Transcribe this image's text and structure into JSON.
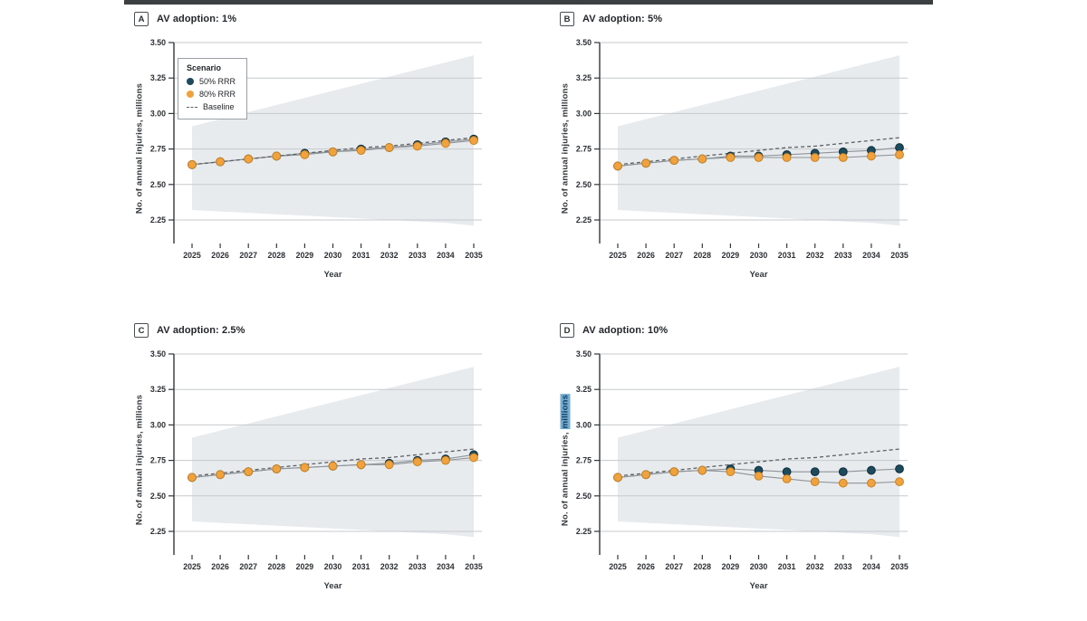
{
  "accent_colors": {
    "rrr50": "#1d4a5c",
    "rrr50_stroke": "#0f2f3c",
    "rrr80": "#f0a23f",
    "rrr80_stroke": "#c9821f",
    "baseline": "#5c6266",
    "band_fill": "#e8ebee",
    "gridline": "#c6cacd",
    "highlight": "#74add2"
  },
  "legend": {
    "title": "Scenario",
    "items": [
      {
        "label": "50% RRR",
        "marker": "navy-dot"
      },
      {
        "label": "80% RRR",
        "marker": "orange-dot"
      },
      {
        "label": "Baseline",
        "marker": "dashed-line"
      }
    ]
  },
  "chart_data": [
    {
      "type": "line",
      "panel_label": "A",
      "title": "AV adoption: 1%",
      "xlabel": "Year",
      "ylabel": "No. of annual injuries, millions",
      "x": [
        2025,
        2026,
        2027,
        2028,
        2029,
        2030,
        2031,
        2032,
        2033,
        2034,
        2035
      ],
      "yticks": [
        3.5,
        3.25,
        3.0,
        2.75,
        2.5,
        2.25
      ],
      "ylim": [
        2.1,
        3.5
      ],
      "series": [
        {
          "name": "50% RRR",
          "color": "#1d4a5c",
          "stroke": "#0f2f3c",
          "values": [
            2.64,
            2.66,
            2.68,
            2.7,
            2.72,
            2.73,
            2.75,
            2.76,
            2.78,
            2.8,
            2.82
          ]
        },
        {
          "name": "80% RRR",
          "color": "#f0a23f",
          "stroke": "#c9821f",
          "values": [
            2.64,
            2.66,
            2.68,
            2.7,
            2.71,
            2.73,
            2.74,
            2.76,
            2.77,
            2.79,
            2.81
          ]
        },
        {
          "name": "Baseline",
          "style": "dashed",
          "color": "#5c6266",
          "values": [
            2.64,
            2.66,
            2.68,
            2.7,
            2.72,
            2.74,
            2.76,
            2.77,
            2.79,
            2.81,
            2.83
          ]
        }
      ],
      "band": {
        "upper": [
          2.91,
          2.96,
          3.01,
          3.06,
          3.11,
          3.16,
          3.21,
          3.26,
          3.31,
          3.36,
          3.41
        ],
        "lower": [
          2.32,
          2.31,
          2.3,
          2.29,
          2.28,
          2.27,
          2.26,
          2.25,
          2.24,
          2.23,
          2.21
        ]
      }
    },
    {
      "type": "line",
      "panel_label": "B",
      "title": "AV adoption: 5%",
      "xlabel": "Year",
      "ylabel": "No. of annual injuries, millions",
      "x": [
        2025,
        2026,
        2027,
        2028,
        2029,
        2030,
        2031,
        2032,
        2033,
        2034,
        2035
      ],
      "yticks": [
        3.5,
        3.25,
        3.0,
        2.75,
        2.5,
        2.25
      ],
      "ylim": [
        2.1,
        3.5
      ],
      "series": [
        {
          "name": "50% RRR",
          "color": "#1d4a5c",
          "stroke": "#0f2f3c",
          "values": [
            2.63,
            2.65,
            2.67,
            2.68,
            2.7,
            2.7,
            2.71,
            2.72,
            2.73,
            2.74,
            2.76
          ]
        },
        {
          "name": "80% RRR",
          "color": "#f0a23f",
          "stroke": "#c9821f",
          "values": [
            2.63,
            2.65,
            2.67,
            2.68,
            2.69,
            2.69,
            2.69,
            2.69,
            2.69,
            2.7,
            2.71
          ]
        },
        {
          "name": "Baseline",
          "style": "dashed",
          "color": "#5c6266",
          "values": [
            2.64,
            2.66,
            2.68,
            2.7,
            2.72,
            2.74,
            2.76,
            2.77,
            2.79,
            2.81,
            2.83
          ]
        }
      ],
      "band": {
        "upper": [
          2.91,
          2.96,
          3.01,
          3.06,
          3.11,
          3.16,
          3.21,
          3.26,
          3.31,
          3.36,
          3.41
        ],
        "lower": [
          2.32,
          2.31,
          2.3,
          2.29,
          2.28,
          2.27,
          2.26,
          2.25,
          2.24,
          2.23,
          2.21
        ]
      }
    },
    {
      "type": "line",
      "panel_label": "C",
      "title": "AV adoption: 2.5%",
      "xlabel": "Year",
      "ylabel": "No. of annual injuries, millions",
      "x": [
        2025,
        2026,
        2027,
        2028,
        2029,
        2030,
        2031,
        2032,
        2033,
        2034,
        2035
      ],
      "yticks": [
        3.5,
        3.25,
        3.0,
        2.75,
        2.5,
        2.25
      ],
      "ylim": [
        2.1,
        3.5
      ],
      "series": [
        {
          "name": "50% RRR",
          "color": "#1d4a5c",
          "stroke": "#0f2f3c",
          "values": [
            2.63,
            2.65,
            2.67,
            2.69,
            2.7,
            2.71,
            2.72,
            2.73,
            2.75,
            2.76,
            2.79
          ]
        },
        {
          "name": "80% RRR",
          "color": "#f0a23f",
          "stroke": "#c9821f",
          "values": [
            2.63,
            2.65,
            2.67,
            2.69,
            2.7,
            2.71,
            2.72,
            2.72,
            2.74,
            2.75,
            2.77
          ]
        },
        {
          "name": "Baseline",
          "style": "dashed",
          "color": "#5c6266",
          "values": [
            2.64,
            2.66,
            2.68,
            2.7,
            2.72,
            2.74,
            2.76,
            2.77,
            2.79,
            2.81,
            2.83
          ]
        }
      ],
      "band": {
        "upper": [
          2.91,
          2.96,
          3.01,
          3.06,
          3.11,
          3.16,
          3.21,
          3.26,
          3.31,
          3.36,
          3.41
        ],
        "lower": [
          2.32,
          2.31,
          2.3,
          2.29,
          2.28,
          2.27,
          2.26,
          2.25,
          2.24,
          2.23,
          2.21
        ]
      }
    },
    {
      "type": "line",
      "panel_label": "D",
      "title": "AV adoption: 10%",
      "xlabel": "Year",
      "ylabel": "No. of annual injuries, millions",
      "ylabel_prefix": "No. of annual injuries, ",
      "ylabel_highlight": "millions",
      "x": [
        2025,
        2026,
        2027,
        2028,
        2029,
        2030,
        2031,
        2032,
        2033,
        2034,
        2035
      ],
      "yticks": [
        3.5,
        3.25,
        3.0,
        2.75,
        2.5,
        2.25
      ],
      "ylim": [
        2.1,
        3.5
      ],
      "series": [
        {
          "name": "50% RRR",
          "color": "#1d4a5c",
          "stroke": "#0f2f3c",
          "values": [
            2.63,
            2.65,
            2.67,
            2.68,
            2.69,
            2.68,
            2.67,
            2.67,
            2.67,
            2.68,
            2.69
          ]
        },
        {
          "name": "80% RRR",
          "color": "#f0a23f",
          "stroke": "#c9821f",
          "values": [
            2.63,
            2.65,
            2.67,
            2.68,
            2.67,
            2.64,
            2.62,
            2.6,
            2.59,
            2.59,
            2.6
          ]
        },
        {
          "name": "Baseline",
          "style": "dashed",
          "color": "#5c6266",
          "values": [
            2.64,
            2.66,
            2.68,
            2.7,
            2.72,
            2.74,
            2.76,
            2.77,
            2.79,
            2.81,
            2.83
          ]
        }
      ],
      "band": {
        "upper": [
          2.91,
          2.96,
          3.01,
          3.06,
          3.11,
          3.16,
          3.21,
          3.26,
          3.31,
          3.36,
          3.41
        ],
        "lower": [
          2.32,
          2.31,
          2.3,
          2.29,
          2.28,
          2.27,
          2.26,
          2.25,
          2.24,
          2.23,
          2.21
        ]
      }
    }
  ]
}
